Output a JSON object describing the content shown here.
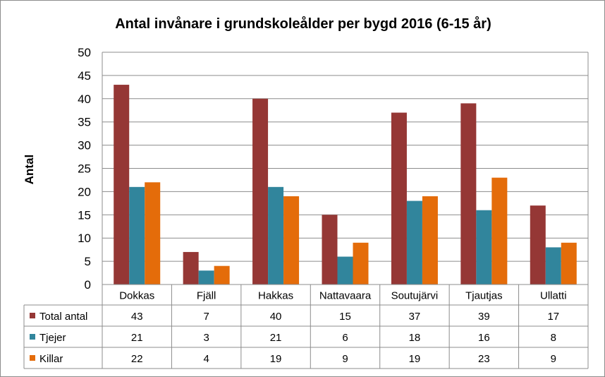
{
  "chart_data": {
    "type": "bar",
    "title": "Antal invånare i grundskoleålder per bygd 2016 (6-15 år)",
    "xlabel": "",
    "ylabel": "Antal",
    "ylim": [
      0,
      50
    ],
    "yticks": [
      0,
      5,
      10,
      15,
      20,
      25,
      30,
      35,
      40,
      45,
      50
    ],
    "grid": true,
    "legend": "data-table-left",
    "categories": [
      "Dokkas",
      "Fjäll",
      "Hakkas",
      "Nattavaara",
      "Soutujärvi",
      "Tjautjas",
      "Ullatti"
    ],
    "series": [
      {
        "name": "Total antal",
        "color": "#953735",
        "values": [
          43,
          7,
          40,
          15,
          37,
          39,
          17
        ]
      },
      {
        "name": "Tjejer",
        "color": "#31859C",
        "values": [
          21,
          3,
          21,
          6,
          18,
          16,
          8
        ]
      },
      {
        "name": "Killar",
        "color": "#E46C0A",
        "values": [
          22,
          4,
          19,
          9,
          19,
          23,
          9
        ]
      }
    ]
  }
}
